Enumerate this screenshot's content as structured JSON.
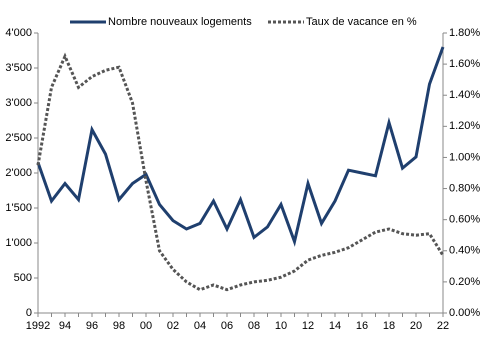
{
  "chart_data": {
    "type": "line",
    "categories": [
      "1992",
      null,
      "94",
      null,
      "96",
      null,
      "98",
      null,
      "00",
      null,
      "02",
      null,
      "04",
      null,
      "06",
      null,
      "08",
      null,
      "10",
      null,
      "12",
      null,
      "14",
      null,
      "16",
      null,
      "18",
      null,
      "20",
      null,
      "22"
    ],
    "series": [
      {
        "name": "Nombre nouveaux logements",
        "color": "#1f3f6e",
        "axis": "y",
        "values": [
          2150,
          1600,
          1850,
          1620,
          2620,
          2270,
          1620,
          1850,
          1980,
          1550,
          1320,
          1200,
          1280,
          1600,
          1200,
          1620,
          1080,
          1230,
          1550,
          1020,
          1850,
          1280,
          1600,
          2040,
          2000,
          1960,
          2720,
          2070,
          2230,
          3270,
          3800
        ]
      },
      {
        "name": "Taux de vacance en %",
        "color": "#555555",
        "axis": "y2",
        "dashed": true,
        "values": [
          0.95,
          1.45,
          1.65,
          1.45,
          1.52,
          1.56,
          1.58,
          1.35,
          0.85,
          0.4,
          0.28,
          0.2,
          0.15,
          0.18,
          0.15,
          0.18,
          0.2,
          0.21,
          0.23,
          0.27,
          0.34,
          0.37,
          0.39,
          0.42,
          0.47,
          0.52,
          0.54,
          0.51,
          0.5,
          0.51,
          0.37
        ]
      }
    ],
    "ylim": [
      0,
      4000
    ],
    "yticks": [
      0,
      500,
      {
        "value": 1000,
        "label": "1'000"
      },
      {
        "value": 1500,
        "label": "1'500"
      },
      {
        "value": 2000,
        "label": "2'000"
      },
      {
        "value": 2500,
        "label": "2'500"
      },
      {
        "value": 3000,
        "label": "3'000"
      },
      {
        "value": 3500,
        "label": "3'500"
      },
      {
        "value": 4000,
        "label": "4'000"
      }
    ],
    "y2lim": [
      0,
      1.8
    ],
    "y2ticks": [
      {
        "value": 0,
        "label": "0.00%"
      },
      {
        "value": 0.2,
        "label": "0.20%"
      },
      {
        "value": 0.4,
        "label": "0.40%"
      },
      {
        "value": 0.6,
        "label": "0.60%"
      },
      {
        "value": 0.8,
        "label": "0.80%"
      },
      {
        "value": 1.0,
        "label": "1.00%"
      },
      {
        "value": 1.2,
        "label": "1.20%"
      },
      {
        "value": 1.4,
        "label": "1.40%"
      },
      {
        "value": 1.6,
        "label": "1.60%"
      },
      {
        "value": 1.8,
        "label": "1.80%"
      }
    ],
    "legend": "top"
  }
}
